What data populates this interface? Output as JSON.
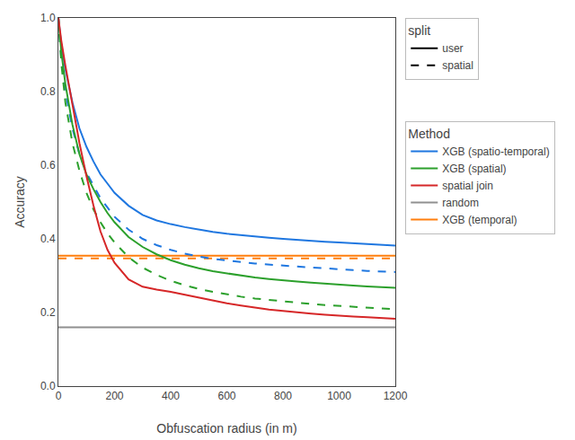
{
  "chart_data": {
    "type": "line",
    "xlabel": "Obfuscation radius (in m)",
    "ylabel": "Accuracy",
    "x": [
      0,
      10,
      25,
      50,
      75,
      100,
      125,
      150,
      175,
      200,
      250,
      300,
      350,
      400,
      450,
      500,
      550,
      600,
      650,
      700,
      750,
      800,
      850,
      900,
      950,
      1000,
      1050,
      1100,
      1150,
      1200
    ],
    "xlim": [
      0,
      1200
    ],
    "ylim": [
      0.0,
      1.0
    ],
    "xticks": [
      0,
      200,
      400,
      600,
      800,
      1000,
      1200
    ],
    "yticks": [
      {
        "value": 0.0,
        "label": "0.0"
      },
      0.2,
      0.4,
      0.6,
      0.8,
      {
        "value": 1.0,
        "label": "1.0"
      }
    ],
    "grid": false,
    "legends": [
      {
        "title": "split",
        "legend": "upper left",
        "entries": [
          {
            "name": "user",
            "line_style": "solid"
          },
          {
            "name": "spatial",
            "line_style": "dashed"
          }
        ]
      },
      {
        "title": "Method",
        "legend": "upper right",
        "entries": [
          {
            "name": "XGB (spatio-temporal)",
            "color": "#1f77e0"
          },
          {
            "name": "XGB (spatial)",
            "color": "#2ca02c"
          },
          {
            "name": "spatial join",
            "color": "#d62728"
          },
          {
            "name": "random",
            "color": "#909090"
          },
          {
            "name": "XGB (temporal)",
            "color": "#ff7f0e"
          }
        ]
      }
    ],
    "series": [
      {
        "method": "XGB (temporal)",
        "split": "user",
        "type": "hline",
        "value": 0.354
      },
      {
        "method": "XGB (temporal)",
        "split": "spatial",
        "type": "hline",
        "value": 0.347
      },
      {
        "method": "random",
        "type": "hline",
        "value": 0.16
      },
      {
        "method": "XGB (spatio-temporal)",
        "split": "user",
        "values": [
          1.0,
          0.93,
          0.86,
          0.77,
          0.7,
          0.65,
          0.61,
          0.575,
          0.55,
          0.525,
          0.49,
          0.465,
          0.45,
          0.44,
          0.432,
          0.425,
          0.419,
          0.414,
          0.41,
          0.406,
          0.403,
          0.4,
          0.397,
          0.394,
          0.392,
          0.39,
          0.388,
          0.386,
          0.384,
          0.382
        ]
      },
      {
        "method": "XGB (spatio-temporal)",
        "split": "spatial",
        "values": [
          1.0,
          0.89,
          0.8,
          0.7,
          0.63,
          0.58,
          0.545,
          0.51,
          0.485,
          0.46,
          0.425,
          0.4,
          0.383,
          0.37,
          0.36,
          0.352,
          0.346,
          0.341,
          0.337,
          0.333,
          0.33,
          0.327,
          0.324,
          0.322,
          0.32,
          0.317,
          0.315,
          0.313,
          0.312,
          0.31
        ]
      },
      {
        "method": "XGB (spatial)",
        "split": "user",
        "values": [
          1.0,
          0.91,
          0.82,
          0.71,
          0.63,
          0.575,
          0.535,
          0.5,
          0.47,
          0.445,
          0.405,
          0.378,
          0.358,
          0.342,
          0.33,
          0.32,
          0.312,
          0.306,
          0.3,
          0.295,
          0.291,
          0.287,
          0.284,
          0.281,
          0.278,
          0.276,
          0.273,
          0.271,
          0.269,
          0.267
        ]
      },
      {
        "method": "XGB (spatial)",
        "split": "spatial",
        "values": [
          1.0,
          0.88,
          0.77,
          0.66,
          0.585,
          0.525,
          0.48,
          0.445,
          0.415,
          0.39,
          0.35,
          0.322,
          0.302,
          0.286,
          0.274,
          0.264,
          0.256,
          0.249,
          0.243,
          0.238,
          0.234,
          0.23,
          0.226,
          0.223,
          0.22,
          0.218,
          0.215,
          0.213,
          0.211,
          0.209
        ]
      },
      {
        "method": "spatial join",
        "split": "user",
        "values": [
          1.0,
          0.94,
          0.87,
          0.76,
          0.66,
          0.57,
          0.49,
          0.42,
          0.37,
          0.335,
          0.29,
          0.27,
          0.262,
          0.256,
          0.248,
          0.24,
          0.232,
          0.225,
          0.219,
          0.213,
          0.208,
          0.204,
          0.2,
          0.197,
          0.194,
          0.191,
          0.189,
          0.187,
          0.185,
          0.183
        ]
      }
    ]
  }
}
